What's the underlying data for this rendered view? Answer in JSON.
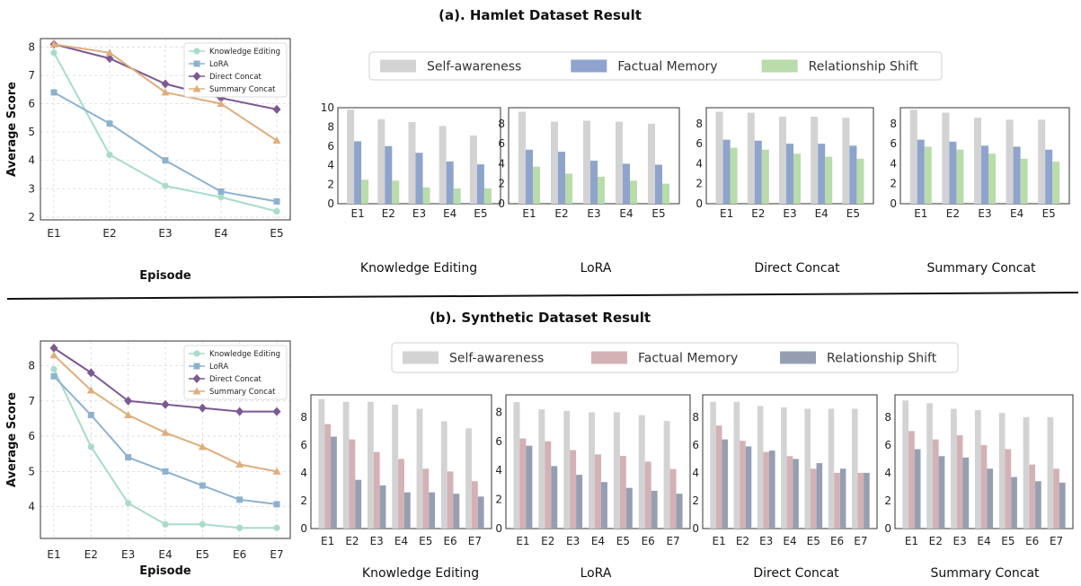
{
  "figure": {
    "title_a": "(a). Hamlet Dataset Result",
    "title_b": "(b). Synthetic Dataset Result"
  },
  "chart_data": [
    {
      "id": "a_line",
      "type": "line",
      "x": [
        "E1",
        "E2",
        "E3",
        "E4",
        "E5"
      ],
      "xlabel": "Episode",
      "ylabel": "Average Score",
      "ylim": [
        1.9,
        8.3
      ],
      "yticks": [
        2,
        3,
        4,
        5,
        6,
        7,
        8
      ],
      "grid": true,
      "legend_position": "top-right",
      "series": [
        {
          "name": "Knowledge Editing",
          "color": "#a8dcc9",
          "marker": "circle",
          "values": [
            7.8,
            4.2,
            3.1,
            2.7,
            2.2
          ]
        },
        {
          "name": "LoRA",
          "color": "#8db2cf",
          "marker": "square",
          "values": [
            6.4,
            5.3,
            4.0,
            2.9,
            2.55
          ]
        },
        {
          "name": "Direct Concat",
          "color": "#7b5a92",
          "marker": "diamond",
          "values": [
            8.1,
            7.6,
            6.7,
            6.2,
            5.8
          ]
        },
        {
          "name": "Summary Concat",
          "color": "#dfae7c",
          "marker": "triangle",
          "values": [
            8.1,
            7.8,
            6.4,
            6.0,
            4.7
          ]
        }
      ]
    },
    {
      "id": "a_legend",
      "type": "legend",
      "entries": [
        {
          "name": "Self-awareness",
          "color": "#d3d3d3"
        },
        {
          "name": "Factual Memory",
          "color": "#8ea4cc"
        },
        {
          "name": "Relationship Shift",
          "color": "#b8dcaa"
        }
      ]
    },
    {
      "id": "a_bar_ke",
      "type": "bar",
      "label": "Knowledge Editing",
      "categories": [
        "E1",
        "E2",
        "E3",
        "E4",
        "E5"
      ],
      "ylim": [
        0,
        10
      ],
      "yticks": [
        0,
        2,
        4,
        6,
        8,
        10
      ],
      "series": [
        {
          "name": "Self-awareness",
          "color": "#d3d3d3",
          "values": [
            9.8,
            8.8,
            8.5,
            8.1,
            7.1
          ]
        },
        {
          "name": "Factual Memory",
          "color": "#8ea4cc",
          "values": [
            6.5,
            6.0,
            5.3,
            4.4,
            4.1
          ]
        },
        {
          "name": "Relationship Shift",
          "color": "#b8dcaa",
          "values": [
            2.5,
            2.4,
            1.7,
            1.6,
            1.6
          ]
        }
      ]
    },
    {
      "id": "a_bar_lora",
      "type": "bar",
      "label": "LoRA",
      "categories": [
        "E1",
        "E2",
        "E3",
        "E4",
        "E5"
      ],
      "ylim": [
        0,
        9.6
      ],
      "yticks": [
        0,
        2,
        4,
        6,
        8
      ],
      "series": [
        {
          "name": "Self-awareness",
          "color": "#d3d3d3",
          "values": [
            9.2,
            8.2,
            8.3,
            8.2,
            8.0
          ]
        },
        {
          "name": "Factual Memory",
          "color": "#8ea4cc",
          "values": [
            5.4,
            5.2,
            4.3,
            4.0,
            3.9
          ]
        },
        {
          "name": "Relationship Shift",
          "color": "#b8dcaa",
          "values": [
            3.7,
            3.0,
            2.7,
            2.3,
            2.0
          ]
        }
      ]
    },
    {
      "id": "a_bar_dc",
      "type": "bar",
      "label": "Direct Concat",
      "categories": [
        "E1",
        "E2",
        "E3",
        "E4",
        "E5"
      ],
      "ylim": [
        0,
        9.6
      ],
      "yticks": [
        0,
        2,
        4,
        6,
        8
      ],
      "series": [
        {
          "name": "Self-awareness",
          "color": "#d3d3d3",
          "values": [
            9.2,
            9.1,
            8.7,
            8.7,
            8.6
          ]
        },
        {
          "name": "Factual Memory",
          "color": "#8ea4cc",
          "values": [
            6.4,
            6.3,
            6.0,
            6.0,
            5.8
          ]
        },
        {
          "name": "Relationship Shift",
          "color": "#b8dcaa",
          "values": [
            5.6,
            5.4,
            5.0,
            4.7,
            4.5
          ]
        }
      ]
    },
    {
      "id": "a_bar_sc",
      "type": "bar",
      "label": "Summary Concat",
      "categories": [
        "E1",
        "E2",
        "E3",
        "E4",
        "E5"
      ],
      "ylim": [
        0,
        9.6
      ],
      "yticks": [
        0,
        2,
        4,
        6,
        8
      ],
      "series": [
        {
          "name": "Self-awareness",
          "color": "#d3d3d3",
          "values": [
            9.4,
            9.1,
            8.6,
            8.4,
            8.4
          ]
        },
        {
          "name": "Factual Memory",
          "color": "#8ea4cc",
          "values": [
            6.4,
            6.2,
            5.8,
            5.7,
            5.4
          ]
        },
        {
          "name": "Relationship Shift",
          "color": "#b8dcaa",
          "values": [
            5.7,
            5.4,
            5.0,
            4.5,
            4.2
          ]
        }
      ]
    },
    {
      "id": "b_line",
      "type": "line",
      "x": [
        "E1",
        "E2",
        "E3",
        "E4",
        "E5",
        "E6",
        "E7"
      ],
      "xlabel": "Episode",
      "ylabel": "Average Score",
      "ylim": [
        3.1,
        8.7
      ],
      "yticks": [
        4,
        5,
        6,
        7,
        8
      ],
      "grid": true,
      "legend_position": "top-right",
      "series": [
        {
          "name": "Knowledge Editing",
          "color": "#a8dcc9",
          "marker": "circle",
          "values": [
            7.9,
            5.7,
            4.1,
            3.5,
            3.5,
            3.4,
            3.4
          ]
        },
        {
          "name": "LoRA",
          "color": "#8db2cf",
          "marker": "square",
          "values": [
            7.7,
            6.6,
            5.4,
            5.0,
            4.6,
            4.2,
            4.07
          ]
        },
        {
          "name": "Direct Concat",
          "color": "#7b5a92",
          "marker": "diamond",
          "values": [
            8.5,
            7.8,
            7.0,
            6.9,
            6.8,
            6.7,
            6.7
          ]
        },
        {
          "name": "Summary Concat",
          "color": "#dfae7c",
          "marker": "triangle",
          "values": [
            8.3,
            7.3,
            6.6,
            6.1,
            5.7,
            5.2,
            5.0
          ]
        }
      ]
    },
    {
      "id": "b_legend",
      "type": "legend",
      "entries": [
        {
          "name": "Self-awareness",
          "color": "#d3d3d3"
        },
        {
          "name": "Factual Memory",
          "color": "#d4b1b5"
        },
        {
          "name": "Relationship Shift",
          "color": "#969fb2"
        }
      ]
    },
    {
      "id": "b_bar_ke",
      "type": "bar",
      "label": "Knowledge Editing",
      "categories": [
        "E1",
        "E2",
        "E3",
        "E4",
        "E5",
        "E6",
        "E7"
      ],
      "ylim": [
        0,
        9.6
      ],
      "yticks": [
        0,
        2,
        4,
        6,
        8
      ],
      "series": [
        {
          "name": "Self-awareness",
          "color": "#d3d3d3",
          "values": [
            9.3,
            9.1,
            9.1,
            8.9,
            8.6,
            7.7,
            7.2
          ]
        },
        {
          "name": "Factual Memory",
          "color": "#d4b1b5",
          "values": [
            7.5,
            6.4,
            5.5,
            5.0,
            4.3,
            4.1,
            3.4
          ]
        },
        {
          "name": "Relationship Shift",
          "color": "#969fb2",
          "values": [
            6.6,
            3.5,
            3.1,
            2.6,
            2.6,
            2.5,
            2.3
          ]
        }
      ]
    },
    {
      "id": "b_bar_lora",
      "type": "bar",
      "label": "LoRA",
      "categories": [
        "E1",
        "E2",
        "E3",
        "E4",
        "E5",
        "E6",
        "E7"
      ],
      "ylim": [
        0,
        9.2
      ],
      "yticks": [
        0,
        2,
        4,
        6,
        8
      ],
      "series": [
        {
          "name": "Self-awareness",
          "color": "#d3d3d3",
          "values": [
            8.7,
            8.2,
            8.1,
            8.0,
            8.0,
            7.8,
            7.4
          ]
        },
        {
          "name": "Factual Memory",
          "color": "#d4b1b5",
          "values": [
            6.2,
            6.0,
            5.4,
            5.1,
            5.0,
            4.6,
            4.1
          ]
        },
        {
          "name": "Relationship Shift",
          "color": "#969fb2",
          "values": [
            5.7,
            4.3,
            3.7,
            3.2,
            2.8,
            2.6,
            2.4
          ]
        }
      ]
    },
    {
      "id": "b_bar_dc",
      "type": "bar",
      "label": "Direct Concat",
      "categories": [
        "E1",
        "E2",
        "E3",
        "E4",
        "E5",
        "E6",
        "E7"
      ],
      "ylim": [
        0,
        9.6
      ],
      "yticks": [
        0,
        2,
        4,
        6,
        8
      ],
      "series": [
        {
          "name": "Self-awareness",
          "color": "#d3d3d3",
          "values": [
            9.1,
            9.1,
            8.8,
            8.7,
            8.6,
            8.6,
            8.6
          ]
        },
        {
          "name": "Factual Memory",
          "color": "#d4b1b5",
          "values": [
            7.4,
            6.3,
            5.5,
            5.2,
            4.3,
            4.0,
            4.0
          ]
        },
        {
          "name": "Relationship Shift",
          "color": "#969fb2",
          "values": [
            6.4,
            5.9,
            5.6,
            5.0,
            4.7,
            4.3,
            4.0
          ]
        }
      ]
    },
    {
      "id": "b_bar_sc",
      "type": "bar",
      "label": "Summary Concat",
      "categories": [
        "E1",
        "E2",
        "E3",
        "E4",
        "E5",
        "E6",
        "E7"
      ],
      "ylim": [
        0,
        9.6
      ],
      "yticks": [
        0,
        2,
        4,
        6,
        8
      ],
      "series": [
        {
          "name": "Self-awareness",
          "color": "#d3d3d3",
          "values": [
            9.2,
            9.0,
            8.6,
            8.5,
            8.3,
            8.0,
            8.0
          ]
        },
        {
          "name": "Factual Memory",
          "color": "#d4b1b5",
          "values": [
            7.0,
            6.4,
            6.7,
            6.0,
            5.7,
            4.6,
            4.3
          ]
        },
        {
          "name": "Relationship Shift",
          "color": "#969fb2",
          "values": [
            5.7,
            5.2,
            5.1,
            4.3,
            3.7,
            3.4,
            3.3
          ]
        }
      ]
    }
  ]
}
